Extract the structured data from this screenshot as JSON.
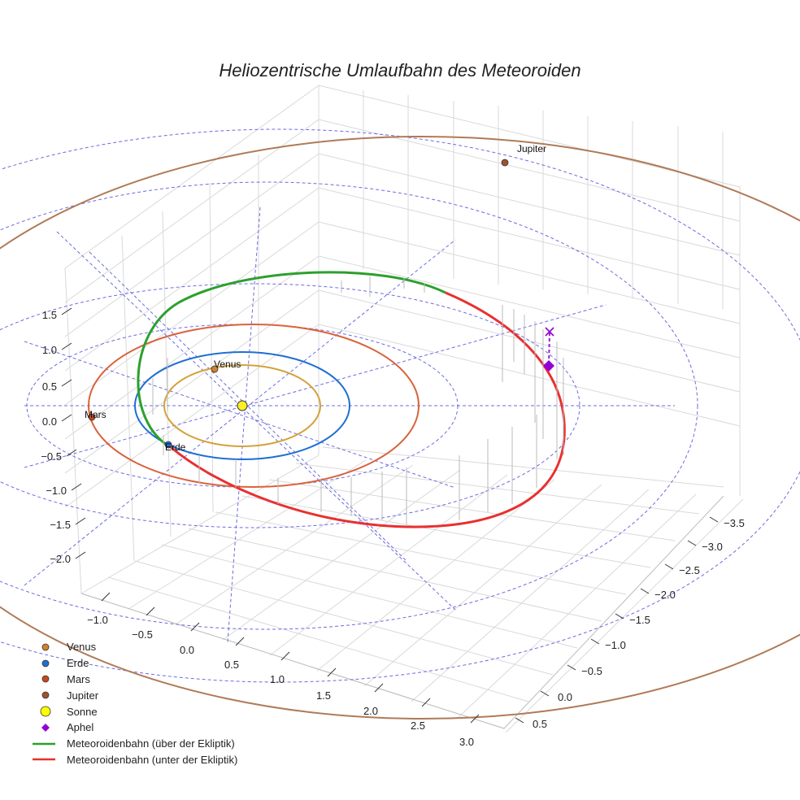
{
  "chart_data": {
    "type": "3d-line",
    "title": "Heliozentrische Umlaufbahn des Meteoroiden",
    "xlabel": "",
    "ylabel": "",
    "zlabel": "",
    "x_ticks": [
      "−1.0",
      "−0.5",
      "0.0",
      "0.5",
      "1.0",
      "1.5",
      "2.0",
      "2.5",
      "3.0"
    ],
    "y_ticks": [
      "−3.5",
      "−3.0",
      "−2.5",
      "−2.0",
      "−1.5",
      "−1.0",
      "−0.5",
      "0.0",
      "0.5"
    ],
    "z_ticks": [
      "1.5",
      "1.0",
      "0.5",
      "0.0",
      "−0.5",
      "−1.0",
      "−1.5",
      "−2.0"
    ],
    "grid": true,
    "legend_position": "bottom-left",
    "colors": {
      "venus": "#d4a23a",
      "earth": "#1f6fd1",
      "mars": "#d9623b",
      "jupiter": "#b07a58",
      "sun": "#ffee22",
      "aphel": "#9b1fd1",
      "orbit_above": "#2ca02c",
      "orbit_below": "#e8302f",
      "ecliptic_grid": "#6b6be0"
    },
    "series": [
      {
        "name": "Venus",
        "marker": "circle",
        "color": "#d4822a",
        "orbit_radius_au": 0.72
      },
      {
        "name": "Erde",
        "marker": "circle",
        "color": "#1f6fd1",
        "orbit_radius_au": 1.0
      },
      {
        "name": "Mars",
        "marker": "circle",
        "color": "#c8481f",
        "orbit_radius_au": 1.52
      },
      {
        "name": "Jupiter",
        "marker": "circle",
        "color": "#a0522d",
        "orbit_radius_au": 5.2
      },
      {
        "name": "Sonne",
        "marker": "circle-large",
        "color": "#ffff00"
      },
      {
        "name": "Aphel",
        "marker": "diamond",
        "color": "#9400d3"
      },
      {
        "name": "Meteoroidenbahn (über der Ekliptik)",
        "marker": "line",
        "color": "#2ca02c"
      },
      {
        "name": "Meteoroidenbahn (unter der Ekliptik)",
        "marker": "line",
        "color": "#e8302f"
      }
    ],
    "point_labels": {
      "venus": "Venus",
      "earth": "Erde",
      "mars": "Mars",
      "jupiter": "Jupiter"
    }
  }
}
